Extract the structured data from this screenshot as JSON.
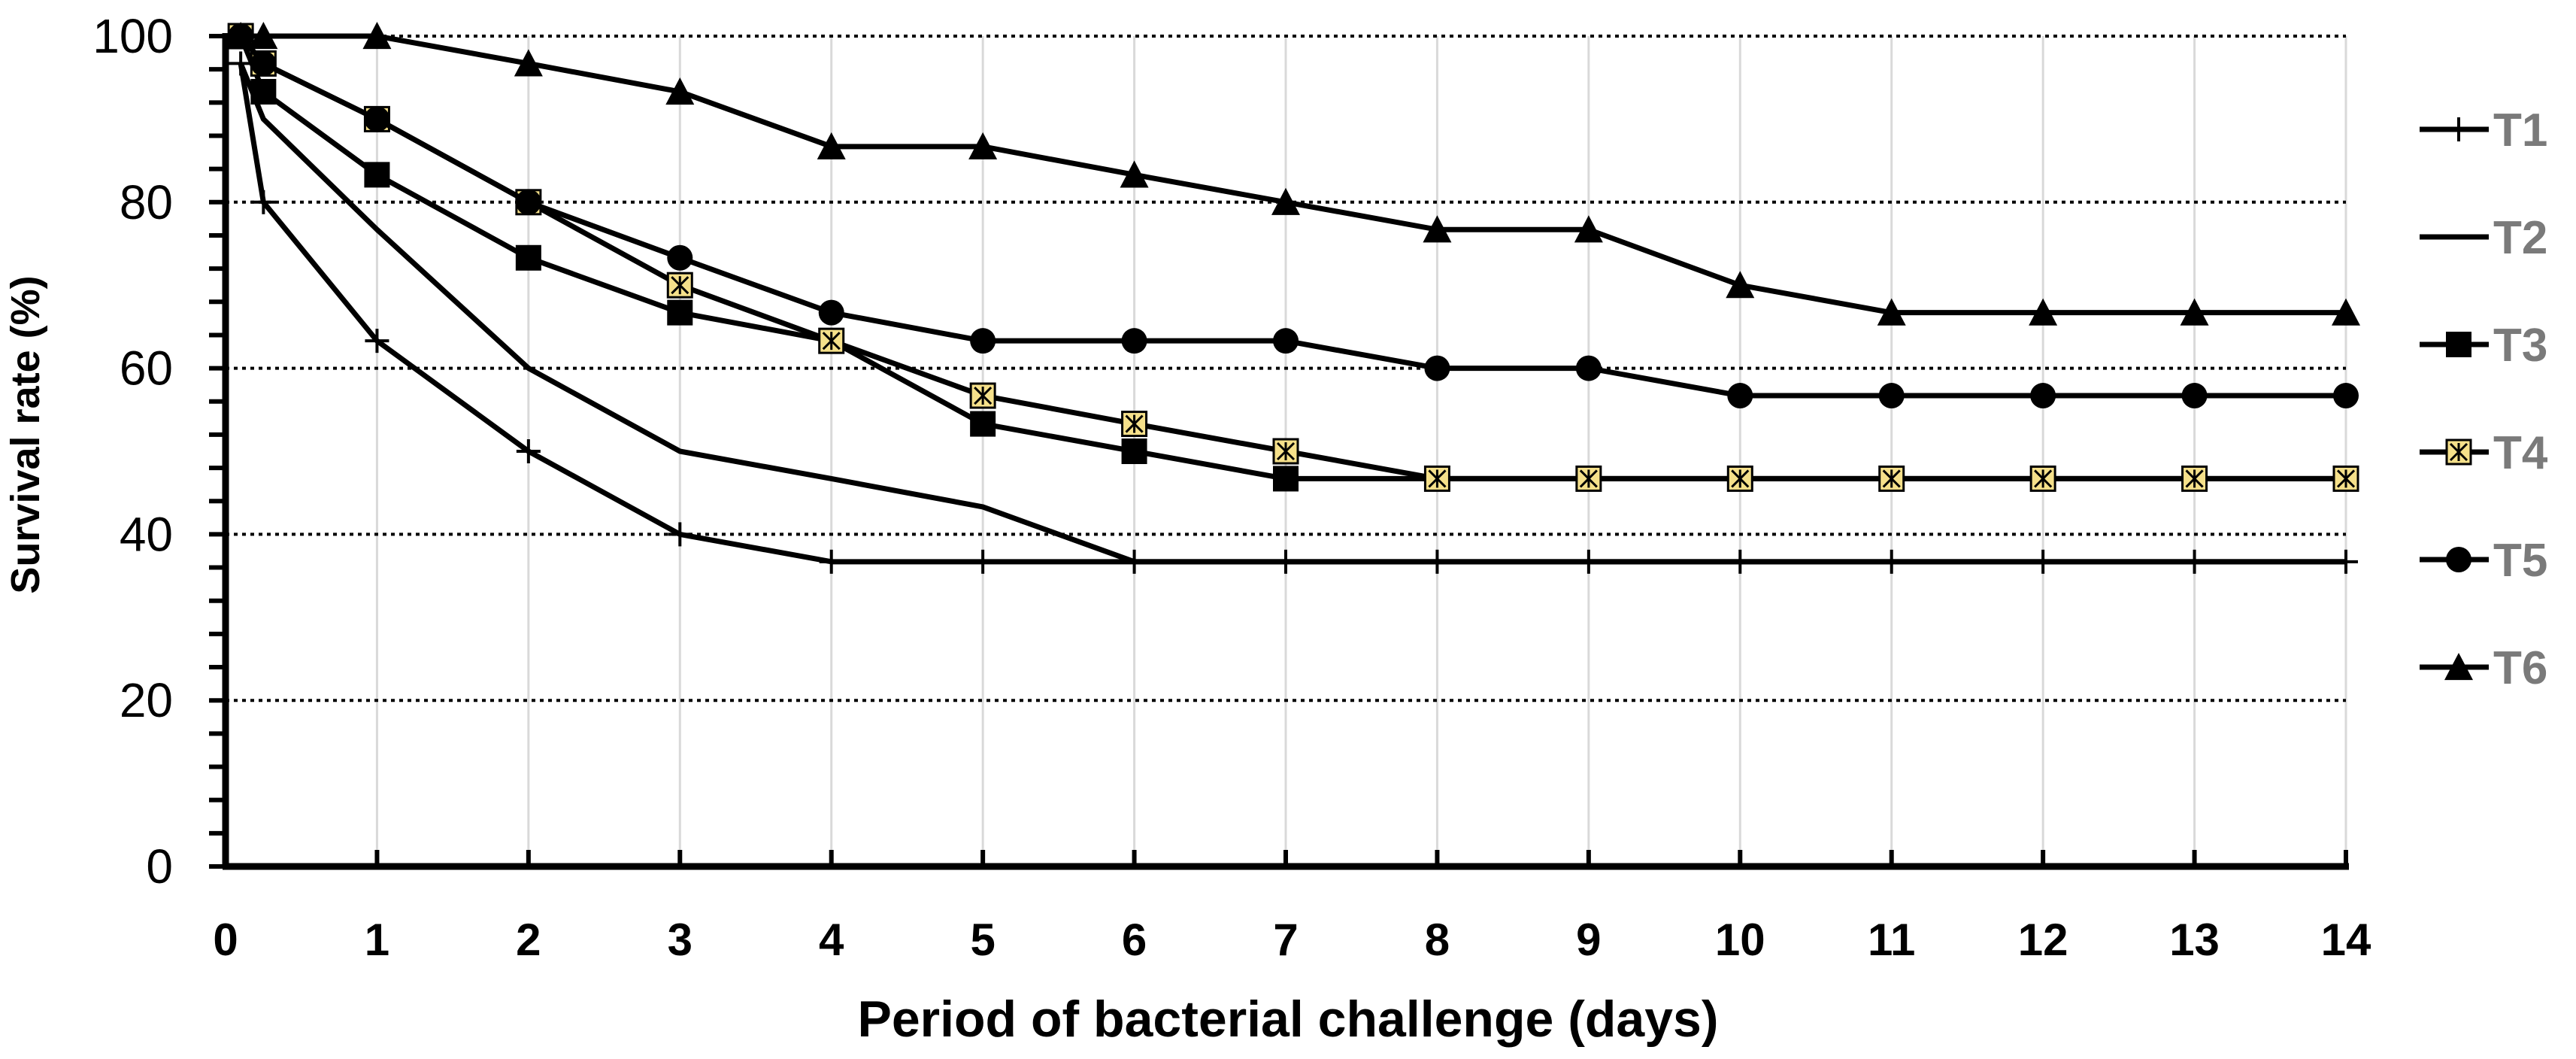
{
  "chart_data": {
    "type": "line",
    "title": "",
    "xlabel": "Period of bacterial challenge (days)",
    "ylabel": "Survival rate (%)",
    "xlim": [
      0,
      14
    ],
    "ylim": [
      0,
      100
    ],
    "x_ticks": [
      0,
      1,
      2,
      3,
      4,
      5,
      6,
      7,
      8,
      9,
      10,
      11,
      12,
      13,
      14
    ],
    "y_ticks": [
      0,
      20,
      40,
      60,
      80,
      100
    ],
    "x_tick_labels": [
      "0",
      "1",
      "2",
      "3",
      "4",
      "5",
      "6",
      "7",
      "8",
      "9",
      "10",
      "11",
      "12",
      "13",
      "14"
    ],
    "y_tick_labels": [
      "0",
      "20",
      "40",
      "60",
      "80",
      "100"
    ],
    "horizontal_grid": "dotted",
    "vertical_grid": "solid light gray",
    "legend_position": "right",
    "series": [
      {
        "name": "T1",
        "marker": "plus",
        "x": [
          0.1,
          0.25,
          1,
          2,
          3,
          4,
          5,
          6,
          7,
          8,
          9,
          10,
          11,
          12,
          13,
          14
        ],
        "values": [
          96.7,
          80,
          63.3,
          50,
          40,
          36.7,
          36.7,
          36.7,
          36.7,
          36.7,
          36.7,
          36.7,
          36.7,
          36.7,
          36.7,
          36.7
        ]
      },
      {
        "name": "T2",
        "marker": "none",
        "x": [
          0.1,
          0.25,
          1,
          2,
          3,
          4,
          5,
          6,
          7,
          8,
          9,
          10,
          11,
          12,
          13,
          14
        ],
        "values": [
          96.7,
          90,
          76.7,
          60,
          50,
          46.7,
          43.3,
          36.7,
          36.7,
          36.7,
          36.7,
          36.7,
          36.7,
          36.7,
          36.7,
          36.7
        ]
      },
      {
        "name": "T3",
        "marker": "square",
        "x": [
          0.1,
          0.25,
          1,
          2,
          3,
          4,
          5,
          6,
          7,
          8,
          9,
          10,
          11,
          12,
          13,
          14
        ],
        "values": [
          100,
          93.3,
          83.3,
          73.3,
          66.7,
          63.3,
          53.3,
          50,
          46.7,
          46.7,
          46.7,
          46.7,
          46.7,
          46.7,
          46.7,
          46.7
        ]
      },
      {
        "name": "T4",
        "marker": "asterisk-box",
        "x": [
          0.1,
          0.25,
          1,
          2,
          3,
          4,
          5,
          6,
          7,
          8,
          9,
          10,
          11,
          12,
          13,
          14
        ],
        "values": [
          100,
          96.7,
          90,
          80,
          70,
          63.3,
          56.7,
          53.3,
          50,
          46.7,
          46.7,
          46.7,
          46.7,
          46.7,
          46.7,
          46.7
        ]
      },
      {
        "name": "T5",
        "marker": "circle",
        "x": [
          0.1,
          0.25,
          1,
          2,
          3,
          4,
          5,
          6,
          7,
          8,
          9,
          10,
          11,
          12,
          13,
          14
        ],
        "values": [
          100,
          96.7,
          90,
          80,
          73.3,
          66.7,
          63.3,
          63.3,
          63.3,
          60,
          60,
          56.7,
          56.7,
          56.7,
          56.7,
          56.7
        ]
      },
      {
        "name": "T6",
        "marker": "triangle",
        "x": [
          0.1,
          0.25,
          1,
          2,
          3,
          4,
          5,
          6,
          7,
          8,
          9,
          10,
          11,
          12,
          13,
          14
        ],
        "values": [
          100,
          100,
          100,
          96.7,
          93.3,
          86.7,
          86.7,
          83.3,
          80,
          76.7,
          76.7,
          70,
          66.7,
          66.7,
          66.7,
          66.7
        ]
      }
    ]
  },
  "colors": {
    "line": "#000000",
    "marker_fill": "#000000",
    "asterisk_fill": "#f5e08a",
    "legend_text": "#7a7a7a",
    "v_grid": "#d9d9d9",
    "h_grid": "#000000"
  }
}
